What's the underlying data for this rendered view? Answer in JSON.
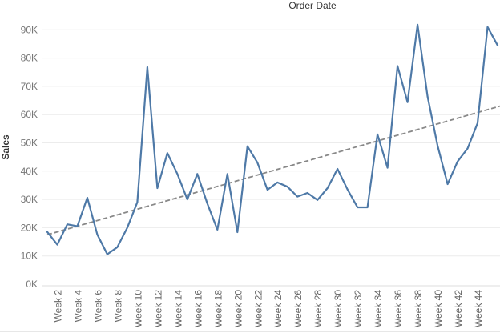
{
  "chart_data": {
    "type": "line",
    "title": "Order Date",
    "xlabel": "",
    "ylabel": "Sales",
    "ylim": [
      0,
      95000
    ],
    "y_ticks": [
      0,
      10000,
      20000,
      30000,
      40000,
      50000,
      60000,
      70000,
      80000,
      90000
    ],
    "y_tick_labels": [
      "0K",
      "10K",
      "20K",
      "30K",
      "40K",
      "50K",
      "60K",
      "70K",
      "80K",
      "90K"
    ],
    "grid": "horizontal",
    "categories": [
      "Week 1",
      "Week 2",
      "Week 3",
      "Week 4",
      "Week 5",
      "Week 6",
      "Week 7",
      "Week 8",
      "Week 9",
      "Week 10",
      "Week 11",
      "Week 12",
      "Week 13",
      "Week 14",
      "Week 15",
      "Week 16",
      "Week 17",
      "Week 18",
      "Week 19",
      "Week 20",
      "Week 21",
      "Week 22",
      "Week 23",
      "Week 24",
      "Week 25",
      "Week 26",
      "Week 27",
      "Week 28",
      "Week 29",
      "Week 30",
      "Week 31",
      "Week 32",
      "Week 33",
      "Week 34",
      "Week 35",
      "Week 36",
      "Week 37",
      "Week 38",
      "Week 39",
      "Week 40",
      "Week 41",
      "Week 42",
      "Week 43",
      "Week 44",
      "Week 45",
      "Week 46"
    ],
    "x_tick_labels": [
      "Week 2",
      "Week 4",
      "Week 6",
      "Week 8",
      "Week 10",
      "Week 12",
      "Week 14",
      "Week 16",
      "Week 18",
      "Week 20",
      "Week 22",
      "Week 24",
      "Week 26",
      "Week 28",
      "Week 30",
      "Week 32",
      "Week 34",
      "Week 36",
      "Week 38",
      "Week 40",
      "Week 42",
      "Week 44"
    ],
    "series": [
      {
        "values": [
          18500,
          14000,
          21200,
          20500,
          30600,
          17600,
          10600,
          13100,
          20000,
          29000,
          76800,
          34000,
          46400,
          39000,
          30000,
          39000,
          28500,
          19300,
          39000,
          18400,
          48800,
          43000,
          33400,
          36000,
          34500,
          31000,
          32300,
          29800,
          34000,
          40800,
          33500,
          27200,
          27200,
          53000,
          41200,
          77200,
          64400,
          91800,
          66400,
          49000,
          35400,
          43400,
          48000,
          57000,
          91000,
          84500
        ],
        "color": "#4e79a7"
      }
    ],
    "trend_line": {
      "type": "linear",
      "start_value": 17500,
      "end_value": 63000,
      "color": "#888888",
      "style": "dashed"
    }
  }
}
